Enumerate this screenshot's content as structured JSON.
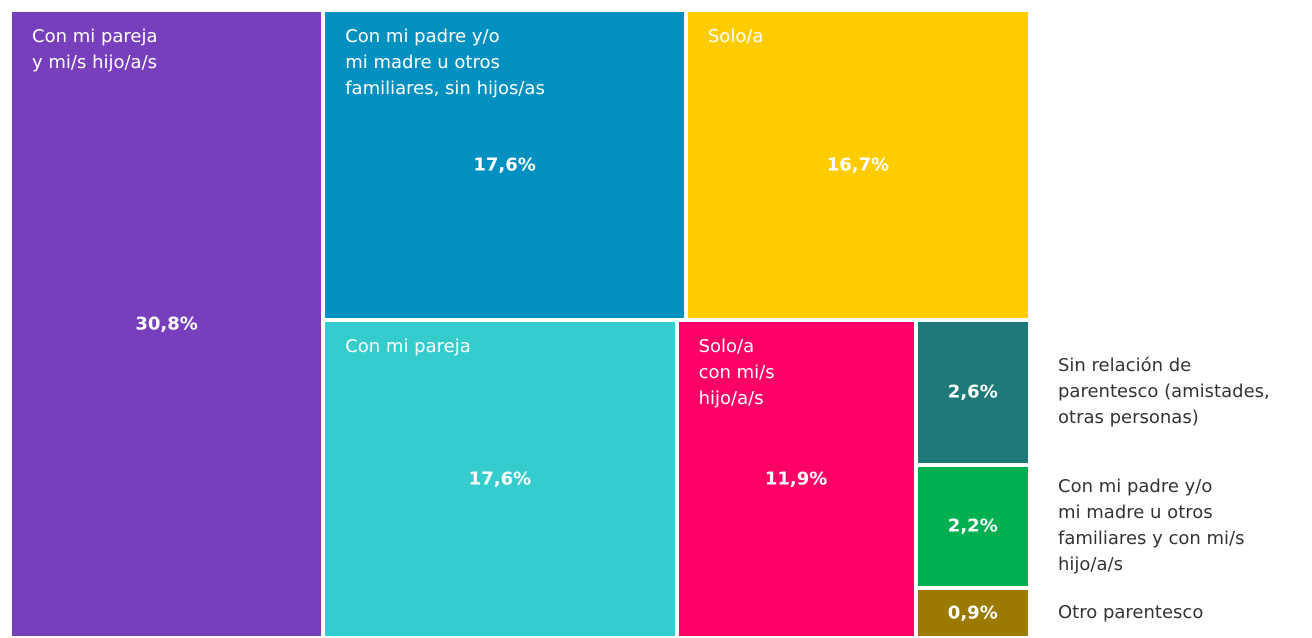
{
  "chart_data": {
    "type": "treemap",
    "categories": [
      "Con mi pareja\ny mi/s hijo/a/s",
      "Con mi padre y/o\nmi madre u otros\nfamiliares, sin hijos/as",
      "Solo/a",
      "Con mi pareja",
      "Solo/a\ncon mi/s\nhijo/a/s",
      "Sin relación de\nparentesco (amistades,\notras personas)",
      "Con mi padre y/o\nmi madre u otros\nfamiliares y con mi/s\nhijo/a/s",
      "Otro parentesco"
    ],
    "values": [
      30.8,
      17.6,
      16.7,
      17.6,
      11.9,
      2.6,
      2.2,
      0.9
    ],
    "value_labels": [
      "30,8%",
      "17,6%",
      "16,7%",
      "17,6%",
      "11,9%",
      "2,6%",
      "2,2%",
      "0,9%"
    ],
    "colors": [
      "#773fbb",
      "#0190c0",
      "#ffcc00",
      "#34cccc",
      "#ff0066",
      "#1e7a78",
      "#00b050",
      "#9a7a00"
    ]
  }
}
